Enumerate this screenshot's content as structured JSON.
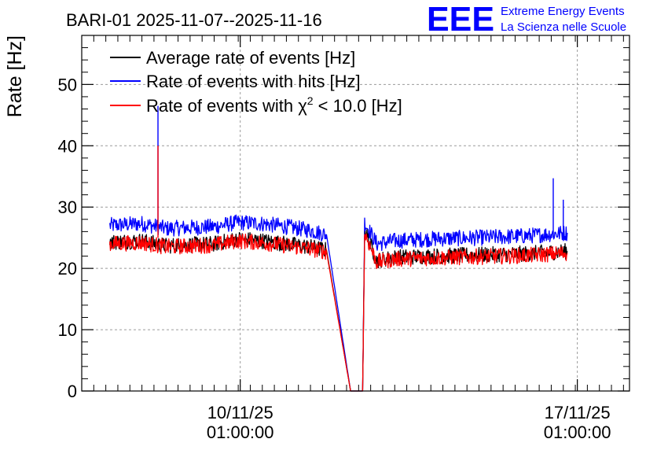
{
  "chart_data": {
    "type": "line",
    "title": "BARI-01 2025-11-07--2025-11-16",
    "ylabel": "Rate [Hz]",
    "xlabel": "",
    "ylim": [
      0,
      58
    ],
    "yticks": [
      0,
      10,
      20,
      30,
      40,
      50
    ],
    "x_unit": "day",
    "x_axis": {
      "min": "2025-11-06 18:00:00",
      "max": "2025-11-18 03:00:00",
      "ticks": [
        {
          "date": "10/11/25",
          "time": "01:00:00",
          "x": "2025-11-10 01:00:00"
        },
        {
          "date": "17/11/25",
          "time": "01:00:00",
          "x": "2025-11-17 01:00:00"
        }
      ]
    },
    "grid": true,
    "legend": {
      "position": "top-left",
      "entries": [
        {
          "label": "Average rate of events [Hz]",
          "color": "#000000"
        },
        {
          "label_pre": "Rate of events with hits [Hz]",
          "label_post": "",
          "color": "#0000ff"
        },
        {
          "label_pre": "Rate of events with χ",
          "sup": "2",
          "label_post": " < 10.0 [Hz]",
          "color": "#ff0000"
        }
      ]
    },
    "logo": {
      "mark": "EEE",
      "line1": "Extreme Energy Events",
      "line2": "La Scienza nelle Scuole",
      "color": "#0000ff"
    },
    "series": [
      {
        "name": "Rate of events with hits [Hz]",
        "color": "#0000ff",
        "x": [
          "2025-11-07 08:00",
          "2025-11-08 00:00",
          "2025-11-08 12:00",
          "2025-11-09 12:00",
          "2025-11-10 00:00",
          "2025-11-10 12:00",
          "2025-11-11 00:00",
          "2025-11-11 12:00",
          "2025-11-11 20:00",
          "2025-11-12 08:00",
          "2025-11-12 14:00",
          "2025-11-12 15:00",
          "2025-11-12 21:00",
          "2025-11-13 06:00",
          "2025-11-14 00:00",
          "2025-11-15 00:00",
          "2025-11-16 00:00",
          "2025-11-16 20:00"
        ],
        "values": [
          27,
          27.3,
          26.5,
          26.8,
          27.5,
          27.3,
          26.8,
          26.2,
          25.5,
          0,
          0,
          27.5,
          24,
          24.5,
          24.8,
          25,
          25.3,
          25.8
        ]
      },
      {
        "name": "Average rate of events [Hz]",
        "color": "#000000",
        "x": [
          "2025-11-07 08:00",
          "2025-11-08 00:00",
          "2025-11-08 12:00",
          "2025-11-09 12:00",
          "2025-11-10 00:00",
          "2025-11-10 12:00",
          "2025-11-11 00:00",
          "2025-11-11 12:00",
          "2025-11-11 20:00",
          "2025-11-12 08:00",
          "2025-11-12 14:00",
          "2025-11-12 15:00",
          "2025-11-12 21:00",
          "2025-11-13 06:00",
          "2025-11-14 00:00",
          "2025-11-15 00:00",
          "2025-11-16 00:00",
          "2025-11-16 20:00"
        ],
        "values": [
          24.3,
          24.5,
          23.7,
          24,
          24.8,
          24.5,
          24,
          23.5,
          23,
          0,
          0,
          26.2,
          21.3,
          21.8,
          22,
          22.2,
          22.4,
          22.8
        ]
      },
      {
        "name": "Rate of events with χ2 < 10.0 [Hz]",
        "color": "#ff0000",
        "x": [
          "2025-11-07 08:00",
          "2025-11-08 00:00",
          "2025-11-08 12:00",
          "2025-11-09 12:00",
          "2025-11-10 00:00",
          "2025-11-10 12:00",
          "2025-11-11 00:00",
          "2025-11-11 12:00",
          "2025-11-11 20:00",
          "2025-11-12 08:00",
          "2025-11-12 14:00",
          "2025-11-12 15:00",
          "2025-11-12 21:00",
          "2025-11-13 06:00",
          "2025-11-14 00:00",
          "2025-11-15 00:00",
          "2025-11-16 00:00",
          "2025-11-16 20:00"
        ],
        "values": [
          24,
          24.2,
          23.5,
          23.8,
          24.5,
          24.2,
          23.7,
          23.2,
          22.7,
          0,
          0,
          25.8,
          21,
          21.5,
          21.7,
          21.9,
          22.1,
          22.5
        ]
      }
    ],
    "spikes": [
      {
        "series": "Rate of events with hits [Hz]",
        "x": "2025-11-08 08:00",
        "value": 46.5
      },
      {
        "series": "Rate of events with χ2 < 10.0 [Hz]",
        "x": "2025-11-08 08:00",
        "value": 40
      },
      {
        "series": "Rate of events with hits [Hz]",
        "x": "2025-11-16 13:00",
        "value": 34.7
      },
      {
        "series": "Rate of events with hits [Hz]",
        "x": "2025-11-16 18:00",
        "value": 31.2
      }
    ]
  }
}
